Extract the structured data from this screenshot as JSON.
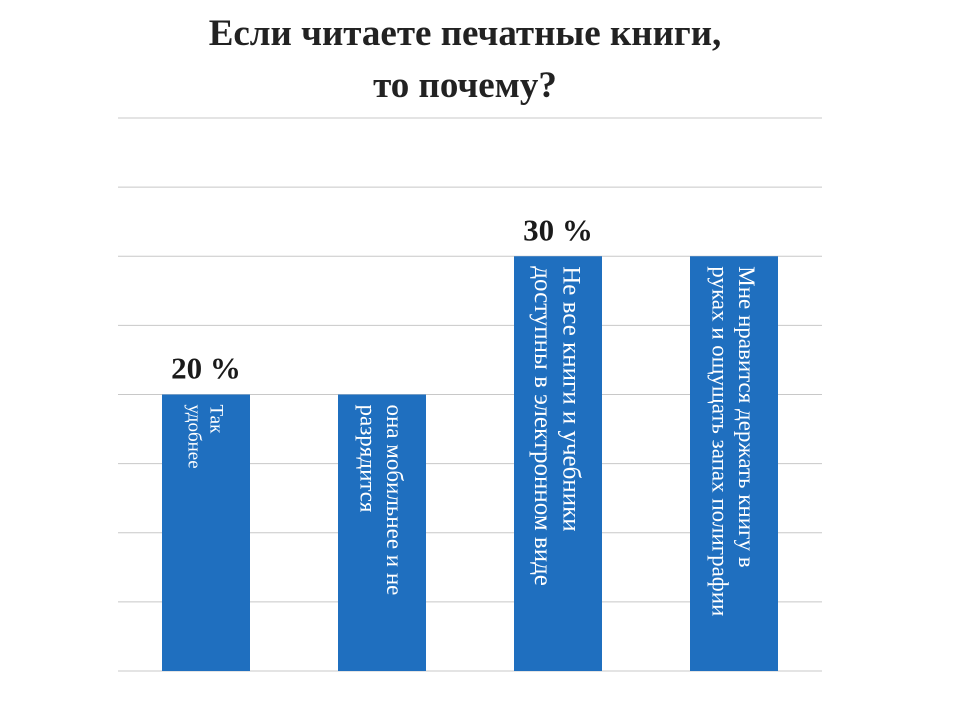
{
  "title_lines": [
    "Если читаете печатные  книги,",
    "то почему?"
  ],
  "colors": {
    "bar": "#1f6fbf",
    "grid": "#c8c8c8",
    "bar_text": "#ffffff",
    "label": "#1a1a1a"
  },
  "chart_data": {
    "type": "bar",
    "title": "Если читаете печатные  книги, то почему?",
    "ylim": [
      0,
      40
    ],
    "grid": true,
    "categories": [
      [
        "Так",
        "удобнее"
      ],
      [
        "она мобильнее и не",
        "разрядится"
      ],
      [
        "Не все книги и учебники",
        "доступны в электронном виде"
      ],
      [
        "Мне нравится держать книгу в",
        "руках  и ощущать запах полиграфии"
      ]
    ],
    "values": [
      20,
      20,
      30,
      30
    ],
    "data_labels": [
      "20 %",
      "",
      "30 %",
      ""
    ]
  }
}
